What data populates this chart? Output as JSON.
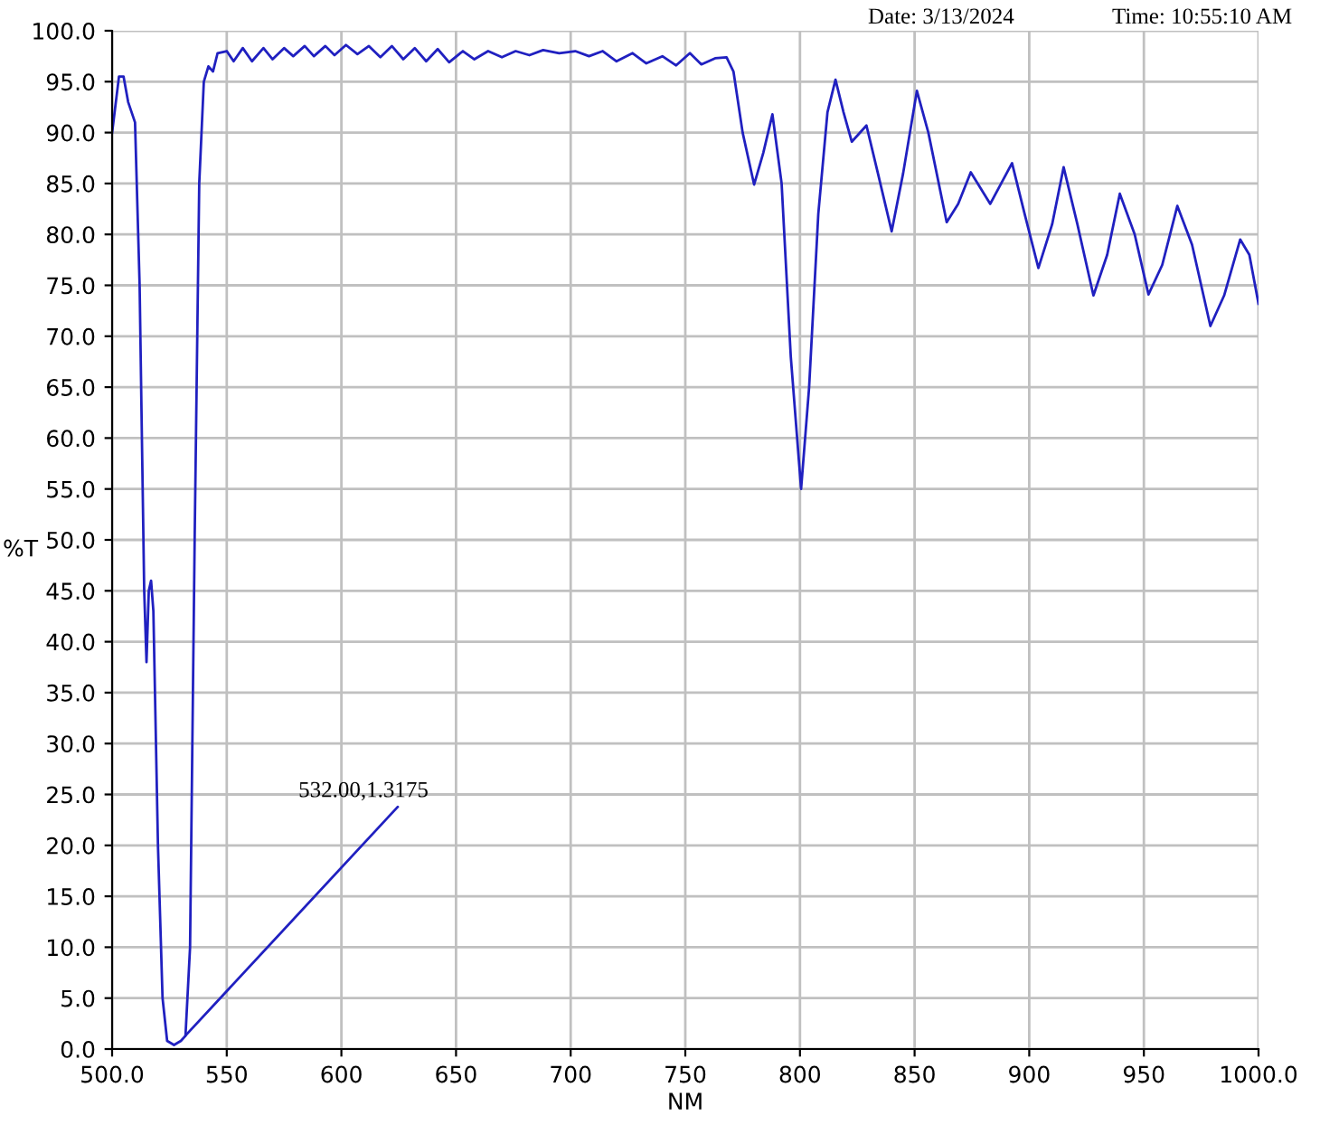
{
  "chart_data": {
    "type": "line",
    "xlabel": "NM",
    "ylabel": "%T",
    "x": [
      500,
      503,
      505,
      507,
      510,
      512,
      514,
      515,
      516,
      517,
      518,
      520,
      522,
      524,
      527,
      530,
      532,
      534,
      536,
      538,
      540,
      542,
      544,
      546,
      550,
      553,
      557,
      561,
      566,
      570,
      575,
      579,
      584,
      588,
      593,
      597,
      602,
      607,
      612,
      617,
      622,
      627,
      632,
      637,
      642,
      647,
      653,
      658,
      664,
      670,
      676,
      682,
      688,
      695,
      702,
      708,
      714,
      720,
      727,
      733,
      740,
      746,
      752,
      757,
      763,
      768,
      771,
      775,
      780,
      784,
      788,
      792,
      796,
      800.5,
      804,
      808,
      812,
      815.5,
      819,
      822.6,
      829,
      834,
      840,
      845,
      851,
      856,
      864,
      869,
      874.5,
      883,
      892.5,
      898,
      904,
      910,
      915,
      921,
      928,
      934,
      939.5,
      946,
      952,
      958,
      964.6,
      971,
      979,
      985,
      992,
      996,
      1000
    ],
    "series": [
      {
        "color": "#2020c0",
        "values": [
          90,
          95.5,
          95.5,
          93,
          91,
          75,
          45,
          38,
          45,
          46,
          43,
          20,
          5,
          0.8,
          0.4,
          0.8,
          1.3,
          10,
          50,
          85,
          95,
          96.5,
          96,
          97.8,
          98,
          97,
          98.3,
          97,
          98.3,
          97.2,
          98.3,
          97.5,
          98.5,
          97.5,
          98.5,
          97.6,
          98.6,
          97.7,
          98.5,
          97.4,
          98.5,
          97.2,
          98.3,
          97,
          98.2,
          96.9,
          98,
          97.2,
          98,
          97.4,
          98,
          97.6,
          98.1,
          97.8,
          98,
          97.5,
          98,
          97,
          97.8,
          96.8,
          97.5,
          96.6,
          97.8,
          96.7,
          97.3,
          97.4,
          96,
          90,
          84.9,
          88,
          91.8,
          85,
          68,
          55,
          65,
          82,
          92,
          95.2,
          92,
          89.1,
          90.7,
          86,
          80.3,
          86,
          94.1,
          90,
          81.2,
          83,
          86.1,
          83,
          87,
          82,
          76.7,
          81,
          86.6,
          81,
          74,
          78,
          84,
          80,
          74.1,
          77,
          82.8,
          79,
          71,
          74,
          79.5,
          78,
          73.2
        ]
      }
    ],
    "xlim": [
      500,
      1000
    ],
    "ylim": [
      0,
      100
    ],
    "xticks": [
      {
        "value": 500,
        "label": "500.0"
      },
      550,
      600,
      650,
      700,
      750,
      800,
      850,
      900,
      950,
      {
        "value": 1000,
        "label": "1000.0"
      }
    ],
    "yticks": [
      {
        "value": 0,
        "label": "0.0"
      },
      {
        "value": 5,
        "label": "5.0"
      },
      {
        "value": 10,
        "label": "10.0"
      },
      {
        "value": 15,
        "label": "15.0"
      },
      {
        "value": 20,
        "label": "20.0"
      },
      {
        "value": 25,
        "label": "25.0"
      },
      {
        "value": 30,
        "label": "30.0"
      },
      {
        "value": 35,
        "label": "35.0"
      },
      {
        "value": 40,
        "label": "40.0"
      },
      {
        "value": 45,
        "label": "45.0"
      },
      {
        "value": 50,
        "label": "50.0"
      },
      {
        "value": 55,
        "label": "55.0"
      },
      {
        "value": 60,
        "label": "60.0"
      },
      {
        "value": 65,
        "label": "65.0"
      },
      {
        "value": 70,
        "label": "70.0"
      },
      {
        "value": 75,
        "label": "75.0"
      },
      {
        "value": 80,
        "label": "80.0"
      },
      {
        "value": 85,
        "label": "85.0"
      },
      {
        "value": 90,
        "label": "90.0"
      },
      {
        "value": 95,
        "label": "95.0"
      },
      {
        "value": 100,
        "label": "100.0"
      }
    ],
    "grid": true,
    "legend": false,
    "marker": "none",
    "line_style": "solid",
    "annotations": [
      {
        "text": "532.00,1.3175",
        "x": 532,
        "y": 1.3175
      },
      "Date: 3/13/2024",
      "Time: 10:55:10 AM"
    ]
  }
}
